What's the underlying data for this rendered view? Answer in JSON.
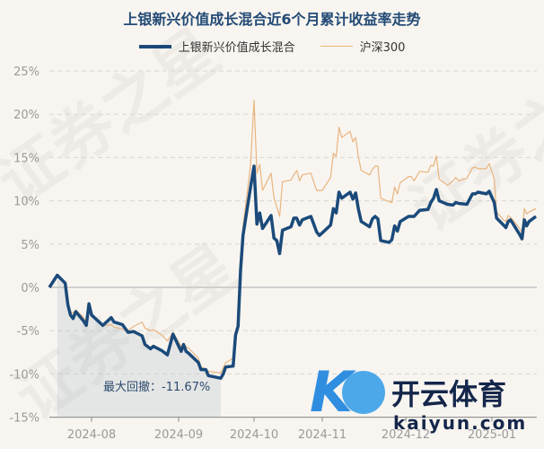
{
  "title": "上银新兴价值成长混合近6个月累计收益率走势",
  "legend": [
    {
      "label": "上银新兴价值成长混合",
      "color": "#1b4a7a"
    },
    {
      "label": "沪深300",
      "color": "#e9b47f"
    }
  ],
  "annotation": {
    "label": "最大回撤：-11.67%"
  },
  "watermark": {
    "text": "证券之星",
    "logo_cn": "开云体育",
    "logo_en": "kaiyun.com"
  },
  "chart_data": {
    "type": "line",
    "title": "上银新兴价值成长混合近6个月累计收益率走势",
    "ylim": [
      -15,
      25
    ],
    "yticks": [
      "25%",
      "20%",
      "15%",
      "10%",
      "5%",
      "0%",
      "-5%",
      "-10%",
      "-15%"
    ],
    "yticks_values": [
      25,
      20,
      15,
      10,
      5,
      0,
      -5,
      -10,
      -15
    ],
    "xticks": [
      "2024-08",
      "2024-09",
      "2024-10",
      "2024-11",
      "2024-12",
      "2025-01"
    ],
    "grid": true,
    "legend_position": "top",
    "max_drawdown": {
      "value": -11.67,
      "start": "2024-07-19",
      "end": "2024-09-18"
    },
    "x": [
      "2024-07-16",
      "2024-07-19",
      "2024-07-22",
      "2024-07-23",
      "2024-07-24",
      "2024-07-25",
      "2024-07-26",
      "2024-07-29",
      "2024-07-30",
      "2024-07-31",
      "2024-08-01",
      "2024-08-05",
      "2024-08-06",
      "2024-08-08",
      "2024-08-09",
      "2024-08-12",
      "2024-08-14",
      "2024-08-16",
      "2024-08-19",
      "2024-08-20",
      "2024-08-22",
      "2024-08-23",
      "2024-08-26",
      "2024-08-28",
      "2024-08-30",
      "2024-09-02",
      "2024-09-03",
      "2024-09-04",
      "2024-09-05",
      "2024-09-09",
      "2024-09-10",
      "2024-09-12",
      "2024-09-13",
      "2024-09-18",
      "2024-09-19",
      "2024-09-20",
      "2024-09-23",
      "2024-09-24",
      "2024-09-25",
      "2024-09-26",
      "2024-09-27",
      "2024-09-30",
      "2024-10-08",
      "2024-10-09",
      "2024-10-10",
      "2024-10-11",
      "2024-10-14",
      "2024-10-15",
      "2024-10-16",
      "2024-10-17",
      "2024-10-18",
      "2024-10-21",
      "2024-10-22",
      "2024-10-23",
      "2024-10-24",
      "2024-10-25",
      "2024-10-28",
      "2024-10-29",
      "2024-10-30",
      "2024-10-31",
      "2024-11-01",
      "2024-11-04",
      "2024-11-05",
      "2024-11-06",
      "2024-11-07",
      "2024-11-08",
      "2024-11-11",
      "2024-11-12",
      "2024-11-13",
      "2024-11-14",
      "2024-11-15",
      "2024-11-18",
      "2024-11-19",
      "2024-11-20",
      "2024-11-21",
      "2024-11-22",
      "2024-11-25",
      "2024-11-26",
      "2024-11-27",
      "2024-11-28",
      "2024-11-29",
      "2024-12-02",
      "2024-12-03",
      "2024-12-04",
      "2024-12-06",
      "2024-12-09",
      "2024-12-10",
      "2024-12-11",
      "2024-12-12",
      "2024-12-13",
      "2024-12-16",
      "2024-12-18",
      "2024-12-19",
      "2024-12-20",
      "2024-12-23",
      "2024-12-25",
      "2024-12-26",
      "2024-12-27",
      "2024-12-30",
      "2024-12-31",
      "2025-01-02",
      "2025-01-03",
      "2025-01-06",
      "2025-01-07",
      "2025-01-08",
      "2025-01-09",
      "2025-01-10",
      "2025-01-13",
      "2025-01-14",
      "2025-01-15",
      "2025-01-16",
      "2025-01-17",
      "2025-01-20"
    ],
    "series": [
      {
        "name": "上银新兴价值成长混合",
        "color": "#1b4a7a",
        "values": [
          0,
          1.4,
          0.5,
          -2,
          -3.2,
          -3.6,
          -2.8,
          -3.9,
          -4.4,
          -1.9,
          -3.2,
          -4.4,
          -4.1,
          -3.5,
          -4.0,
          -4.3,
          -5.2,
          -5.1,
          -5.6,
          -6.6,
          -7.1,
          -6.8,
          -7.3,
          -7.8,
          -5.4,
          -7.4,
          -6.6,
          -7.4,
          -7.6,
          -8.7,
          -9.5,
          -9.5,
          -10.2,
          -10.5,
          -10.0,
          -9.2,
          -9.1,
          -5.5,
          -4.5,
          2,
          6,
          11.5,
          14,
          7.3,
          8.6,
          6.8,
          8.3,
          5.7,
          5.4,
          3.9,
          6.6,
          7.0,
          8.0,
          8.0,
          7.2,
          7.8,
          8.2,
          7.3,
          6.4,
          6.0,
          6.3,
          7.2,
          9.1,
          8.6,
          11.0,
          10.3,
          11.0,
          10.2,
          10.9,
          9.0,
          7.6,
          7.0,
          7.9,
          8.2,
          7.9,
          5.4,
          5.2,
          5.5,
          7.1,
          6.5,
          7.6,
          8.2,
          8.2,
          8.2,
          8.9,
          9.0,
          9.8,
          10.3,
          11.3,
          10.0,
          9.6,
          9.5,
          9.8,
          9.7,
          9.6,
          10.8,
          10.8,
          11.0,
          10.8,
          11.1,
          9.8,
          8.0,
          7.2,
          6.9,
          7.6,
          7.8,
          7.4,
          6.1,
          5.6,
          7.8,
          7.1,
          7.6,
          8.2
        ]
      },
      {
        "name": "沪深300",
        "color": "#e9b47f",
        "values": [
          0,
          1.4,
          0.5,
          -1.6,
          -2.8,
          -3.0,
          -2.6,
          -3.5,
          -4.1,
          -1.9,
          -3.0,
          -4.3,
          -4.4,
          -4.3,
          -4.6,
          -4.8,
          -5.0,
          -4.5,
          -4.0,
          -4.7,
          -5.0,
          -4.9,
          -5.5,
          -6.2,
          -5.2,
          -6.8,
          -6.6,
          -6.9,
          -7.0,
          -8.2,
          -9.2,
          -9.4,
          -9.7,
          -9.9,
          -9.3,
          -8.7,
          -8.2,
          -5.5,
          -4.0,
          3,
          7,
          14,
          21.6,
          13.2,
          14.2,
          11.2,
          13.2,
          10.3,
          9.3,
          8.2,
          12.2,
          12.4,
          13.0,
          13.5,
          12.3,
          13.0,
          13.2,
          12.2,
          11.2,
          11.2,
          11.2,
          12.7,
          15.5,
          15.1,
          18.5,
          17.3,
          18.0,
          16.8,
          17.3,
          15.0,
          13.5,
          13.0,
          13.6,
          14.0,
          14.0,
          10.3,
          9.9,
          9.8,
          11.6,
          10.8,
          12.1,
          12.8,
          12.8,
          12.3,
          13.4,
          13.3,
          14.1,
          14.0,
          15.2,
          12.5,
          11.8,
          12.3,
          12.7,
          12.3,
          12.6,
          13.8,
          13.9,
          13.7,
          13.7,
          14.3,
          12.5,
          8.7,
          7.8,
          7.6,
          8.3,
          8.1,
          7.8,
          6.8,
          6.3,
          9.1,
          8.5,
          8.7,
          9.1
        ]
      }
    ]
  }
}
